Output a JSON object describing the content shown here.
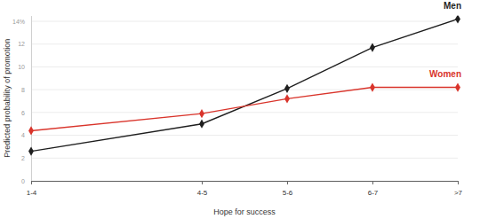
{
  "chart_data": {
    "type": "line",
    "x_label": "Hope for success",
    "y_label": "Predicted probability of promotion",
    "x": [
      2.5,
      4.5,
      5.5,
      6.5,
      7.5
    ],
    "xlim": [
      2.5,
      7.5
    ],
    "xticks": [
      {
        "value": 2.5,
        "label": "1-4"
      },
      {
        "value": 4.5,
        "label": "4-5"
      },
      {
        "value": 5.5,
        "label": "5-6"
      },
      {
        "value": 6.5,
        "label": "6-7"
      },
      {
        "value": 7.5,
        "label": ">7"
      }
    ],
    "ylim": [
      0,
      14.5
    ],
    "yticks": [
      0,
      2,
      4,
      6,
      8,
      10,
      12,
      {
        "value": 14,
        "label": "14%"
      }
    ],
    "grid": true,
    "series": [
      {
        "name": "Men",
        "color": "#1f1f1f",
        "marker": "diamond",
        "values": [
          2.6,
          5.0,
          8.1,
          11.7,
          14.2
        ]
      },
      {
        "name": "Women",
        "color": "#d9342b",
        "marker": "diamond",
        "values": [
          4.4,
          5.9,
          7.2,
          8.2,
          8.2
        ]
      }
    ]
  }
}
